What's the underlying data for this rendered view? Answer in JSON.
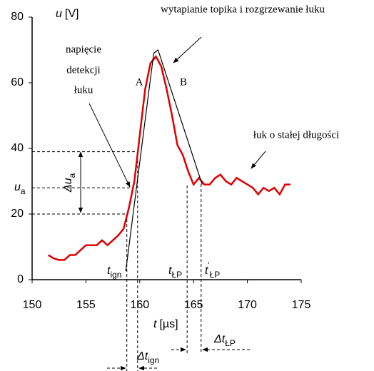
{
  "chart_data": {
    "type": "line",
    "xlim": [
      150,
      175
    ],
    "xticks": [
      150,
      155,
      160,
      165,
      170,
      175
    ],
    "ylim": [
      0,
      80
    ],
    "yticks": [
      0,
      20,
      40,
      60,
      80
    ],
    "y_label": {
      "symbol": "u",
      "unit": "[V]"
    },
    "x_label": {
      "symbol": "t",
      "unit": "[µs]"
    },
    "series": [
      {
        "color": "#e00000",
        "x": [
          151.5,
          152,
          152.5,
          153,
          153.5,
          154,
          154.5,
          155,
          155.5,
          156,
          156.5,
          157,
          157.5,
          158,
          158.5,
          159,
          159.5,
          160,
          160.5,
          161,
          161.5,
          162,
          162.5,
          163,
          163.5,
          164,
          164.5,
          165,
          165.5,
          166,
          166.5,
          167,
          167.5,
          168,
          168.5,
          169,
          169.5,
          170,
          170.5,
          171,
          171.5,
          172,
          172.5,
          173,
          173.5,
          174
        ],
        "values": [
          7.5,
          6.5,
          6,
          6,
          7.5,
          7.5,
          9,
          10.5,
          10.5,
          10.5,
          12,
          10.5,
          12,
          13.5,
          15.5,
          22,
          30,
          44,
          58,
          66,
          68,
          65,
          58,
          50,
          41,
          38,
          33,
          29,
          31,
          29,
          29,
          31,
          32,
          30,
          29,
          31,
          30,
          29,
          28,
          26,
          28,
          27,
          28,
          26,
          29,
          29
        ]
      },
      {
        "color": "#000000",
        "x": [
          158.7,
          161.3,
          161.7,
          165.8
        ],
        "values": [
          2.6,
          69,
          70,
          29
        ]
      }
    ],
    "hlines": [
      39,
      28,
      20
    ],
    "vlines": [
      158.8,
      159.8,
      164.4,
      165.7
    ],
    "annotations": {
      "top": "wytapianie topika i rozgrzewanie łuku",
      "detect": [
        "napięcie",
        "detekcji",
        "łuku"
      ],
      "A": "A",
      "B": "B",
      "steady": "łuk o stałej długości",
      "du": {
        "main": "Δu",
        "sub": "a"
      },
      "ua": {
        "main": "u",
        "sub": "a"
      },
      "t_ign": {
        "main": "t",
        "sub": "ign"
      },
      "t_lp": {
        "main": "t",
        "sub": "ŁP"
      },
      "t_lp2": {
        "main": "t",
        "sup": "'",
        "sub": "ŁP"
      },
      "dt_lp": {
        "main": "Δt",
        "sub": "ŁP"
      },
      "dt_ign": {
        "main": "Δt",
        "sub": "ign"
      }
    }
  }
}
